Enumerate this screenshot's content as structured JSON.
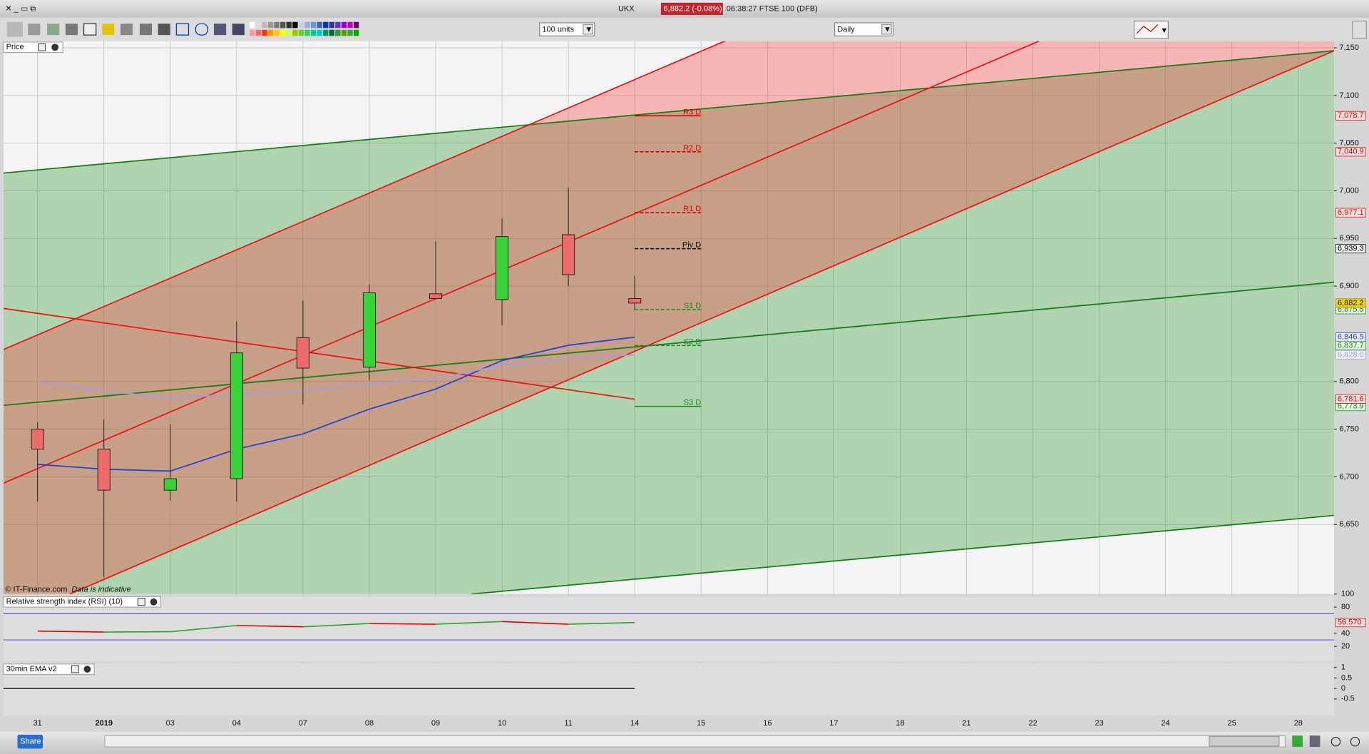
{
  "toolbar": {
    "symbol": "UKX",
    "price": "6,882.2 (-0.08%)",
    "status": "06:38:27 FTSE 100 (DFB)",
    "size_select": "100 units",
    "period_select": "Daily",
    "share": "Share"
  },
  "chart_data": [
    {
      "type": "candlestick",
      "title": "Price",
      "source": "© IT-Finance.com",
      "note": "Data is indicative",
      "categories": [
        "31",
        "2019",
        "03",
        "04",
        "07",
        "08",
        "09",
        "10",
        "11",
        "14",
        "15",
        "16",
        "17",
        "18",
        "21",
        "22",
        "23",
        "24",
        "25",
        "28"
      ],
      "open": [
        6750,
        6729,
        6686,
        6698,
        6846,
        6815,
        6892,
        6886,
        6954,
        6887,
        null,
        null,
        null,
        null,
        null,
        null,
        null,
        null,
        null,
        null
      ],
      "high": [
        6757,
        6760,
        6755,
        6863,
        6885,
        6902,
        6947,
        6971,
        7003,
        6911,
        null,
        null,
        null,
        null,
        null,
        null,
        null,
        null,
        null,
        null
      ],
      "low": [
        6674,
        6595,
        6675,
        6674,
        6776,
        6801,
        6887,
        6859,
        6900,
        6875,
        null,
        null,
        null,
        null,
        null,
        null,
        null,
        null,
        null,
        null
      ],
      "close": [
        6729,
        6686,
        6698,
        6830,
        6814,
        6893,
        6887,
        6952,
        6912,
        6882.2,
        null,
        null,
        null,
        null,
        null,
        null,
        null,
        null,
        null,
        null
      ],
      "last_label": "6,882.2",
      "up_color": "#39d339",
      "down_color": "#ee6b6b",
      "series": [
        {
          "color": "#1f3fe0",
          "values": [
            6713,
            6708,
            6706,
            6729,
            6745,
            6771,
            6792,
            6822,
            6838,
            6846.5,
            null,
            null,
            null,
            null,
            null,
            null,
            null,
            null,
            null,
            null
          ],
          "last_label": "6,846.5"
        },
        {
          "color": "#a49ce0",
          "values": [
            6800,
            6790,
            6783,
            6786,
            6790,
            6797,
            6803,
            6817,
            6824,
            6828.0,
            null,
            null,
            null,
            null,
            null,
            null,
            null,
            null,
            null,
            null
          ],
          "last_label": "6,828.0"
        }
      ],
      "levels": [
        {
          "name": "R3 D",
          "value": 7078.7,
          "label": "7,078.7",
          "color": "#e00000",
          "dashed": false
        },
        {
          "name": "R2 D",
          "value": 7040.9,
          "label": "7,040.9",
          "color": "#e00000",
          "dashed": true
        },
        {
          "name": "R1 D",
          "value": 6977.1,
          "label": "6,977.1",
          "color": "#e00000",
          "dashed": true
        },
        {
          "name": "Piv D",
          "value": 6939.3,
          "label": "6,939.3",
          "color": "#000000",
          "dashed": true
        },
        {
          "name": "S1 D",
          "value": 6875.5,
          "label": "6,875.5",
          "color": "#1a8a1a",
          "dashed": true
        },
        {
          "name": "S2 D",
          "value": 6837.7,
          "label": "6,837.7",
          "color": "#1a8a1a",
          "dashed": true
        },
        {
          "name": "S3 D",
          "value": 6773.9,
          "label": "6,773.9",
          "color": "#1a8a1a",
          "dashed": false
        }
      ],
      "markers": [
        {
          "value": 6781.6,
          "label": "6,781.6",
          "color": "#e00000"
        }
      ],
      "ylim": [
        6577,
        7157
      ],
      "yticks": [
        {
          "value": 7150,
          "label": "7,150"
        },
        {
          "value": 7100,
          "label": "7,100"
        },
        {
          "value": 7050,
          "label": "7,050"
        },
        {
          "value": 7000,
          "label": "7,000"
        },
        {
          "value": 6950,
          "label": "6,950"
        },
        {
          "value": 6900,
          "label": "6,900"
        },
        {
          "value": 6800,
          "label": "6,800"
        },
        {
          "value": 6750,
          "label": "6,750"
        },
        {
          "value": 6700,
          "label": "6,700"
        },
        {
          "value": 6650,
          "label": "6,650"
        }
      ],
      "grid": true
    },
    {
      "type": "rsi",
      "title": "Relative strength index (RSI) (10)",
      "values": [
        43.5,
        42,
        42.5,
        52,
        50,
        55,
        54,
        58,
        54,
        56.57,
        null,
        null,
        null,
        null,
        null,
        null,
        null,
        null,
        null,
        null
      ],
      "last_label": "56.570",
      "up_color": "#2ca02c",
      "down_color": "#e00000",
      "levels": [
        70,
        30
      ],
      "level_color": "#3a3ad8",
      "ylim": [
        0,
        100
      ],
      "yticks": [
        100,
        80,
        40,
        20
      ]
    },
    {
      "type": "line",
      "title": "30min EMA v2",
      "values": [
        0,
        0,
        0,
        0,
        0,
        0,
        0,
        0,
        0,
        0,
        null,
        null,
        null,
        null,
        null,
        null,
        null,
        null,
        null,
        null
      ],
      "color": "#000000",
      "ylim": [
        -1.25,
        1.17
      ],
      "yticks": [
        1,
        0.5,
        0,
        -0.5
      ]
    }
  ]
}
